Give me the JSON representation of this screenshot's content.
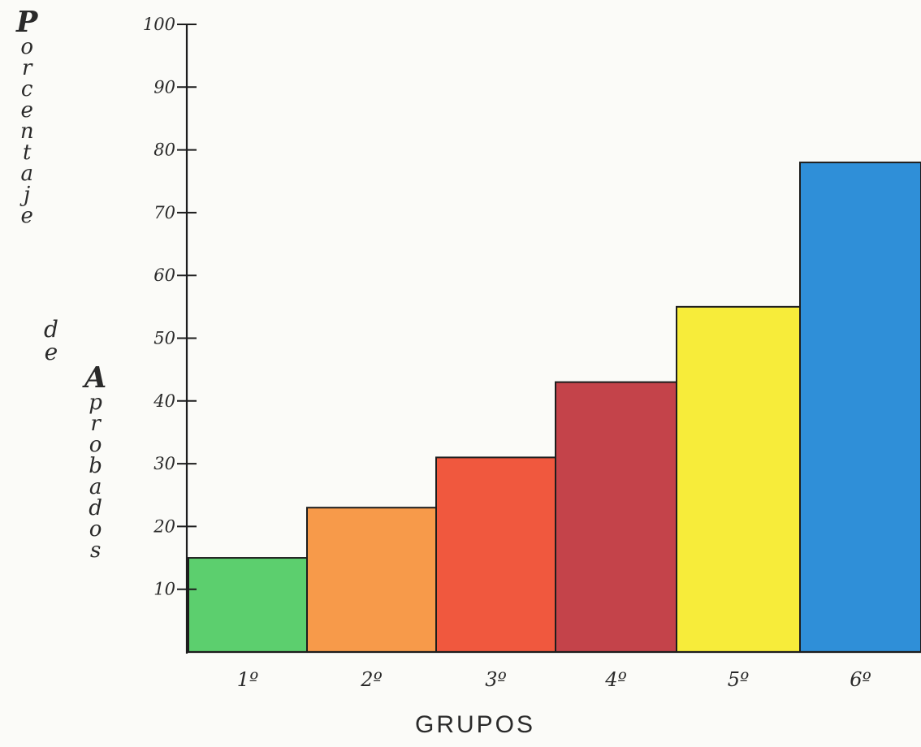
{
  "chart_data": {
    "type": "bar",
    "title": "",
    "ylabel_words": [
      "Porcentaje",
      "de",
      "Aprobados"
    ],
    "xlabel": "GRUPOS",
    "categories": [
      "1º",
      "2º",
      "3º",
      "4º",
      "5º",
      "6º"
    ],
    "values": [
      15,
      23,
      31,
      43,
      55,
      78
    ],
    "bar_colors": [
      "#5ccf6e",
      "#f79a4a",
      "#f0583e",
      "#c4434a",
      "#f7ec3a",
      "#2f8fd8"
    ],
    "ylim": [
      0,
      100
    ],
    "yticks": [
      "10",
      "20",
      "30",
      "40",
      "50",
      "60",
      "70",
      "80",
      "90",
      "100"
    ],
    "grid": false,
    "legend": "none"
  }
}
